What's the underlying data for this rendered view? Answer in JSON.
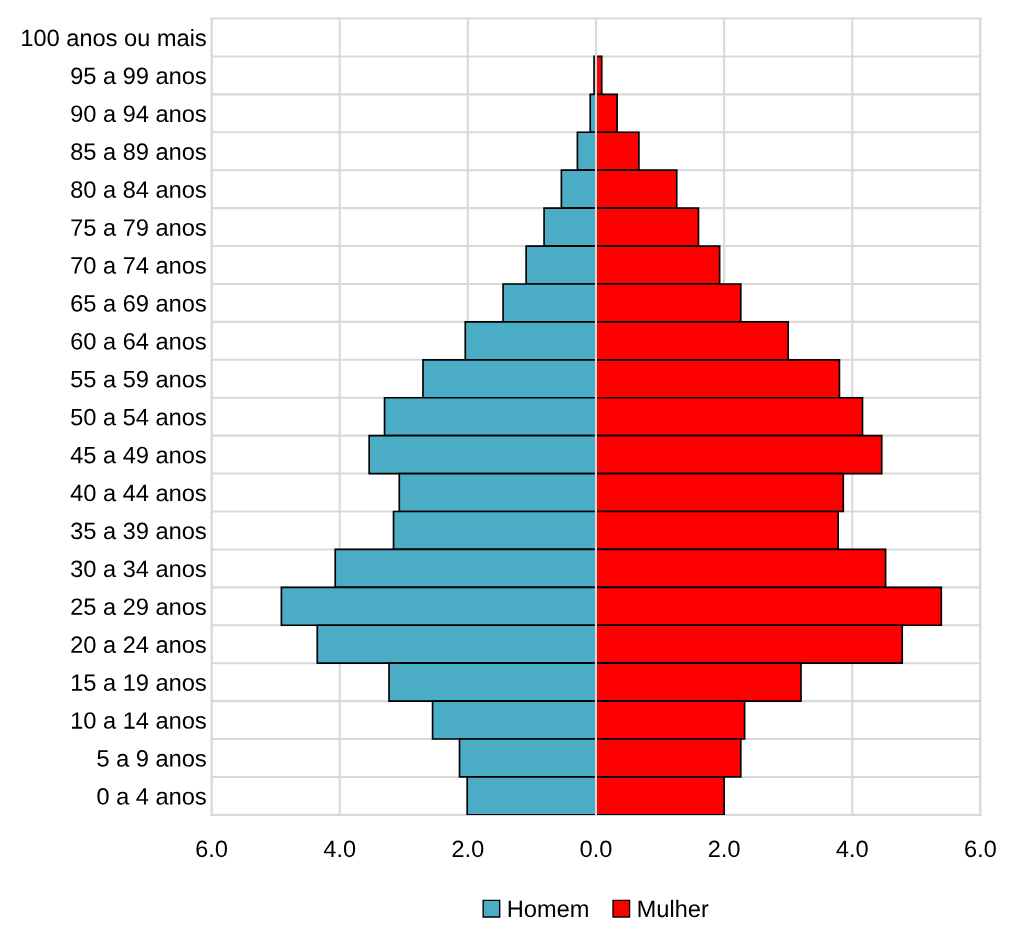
{
  "chart_data": {
    "type": "bar",
    "orientation": "horizontal",
    "categories": [
      "100 anos ou mais",
      "95 a 99 anos",
      "90 a 94 anos",
      "85 a 89 anos",
      "80 a 84 anos",
      "75 a 79 anos",
      "70 a 74 anos",
      "65 a 69 anos",
      "60 a 64 anos",
      "55 a 59 anos",
      "50 a 54 anos",
      "45 a 49 anos",
      "40 a 44 anos",
      "35 a 39 anos",
      "30 a 34 anos",
      "25 a 29 anos",
      "20 a 24 anos",
      "15 a 19 anos",
      "10 a 14 anos",
      "5 a 9 anos",
      "0 a 4 anos"
    ],
    "series": [
      {
        "name": "Homem",
        "color": "#4bacc6",
        "values": [
          null,
          -0.03,
          -0.09,
          -0.29,
          -0.54,
          -0.81,
          -1.09,
          -1.45,
          -2.04,
          -2.7,
          -3.3,
          -3.54,
          -3.07,
          -3.16,
          -4.07,
          -4.91,
          -4.35,
          -3.23,
          -2.55,
          -2.13,
          -2.01
        ]
      },
      {
        "name": "Mulher",
        "color": "#ff0000",
        "values": [
          null,
          0.09,
          0.33,
          0.67,
          1.26,
          1.6,
          1.93,
          2.26,
          3.0,
          3.8,
          4.16,
          4.46,
          3.86,
          3.78,
          4.52,
          5.39,
          4.78,
          3.2,
          2.32,
          2.26,
          2.0
        ]
      }
    ],
    "xlim": [
      -6,
      6
    ],
    "xticks": [
      {
        "value": -6,
        "label": "6.0"
      },
      {
        "value": -4,
        "label": "4.0"
      },
      {
        "value": -2,
        "label": "2.0"
      },
      {
        "value": 0,
        "label": "0.0"
      },
      {
        "value": 2,
        "label": "2.0"
      },
      {
        "value": 4,
        "label": "4.0"
      },
      {
        "value": 6,
        "label": "6.0"
      }
    ],
    "stacked": true,
    "grid": true,
    "legend": "bottom"
  }
}
